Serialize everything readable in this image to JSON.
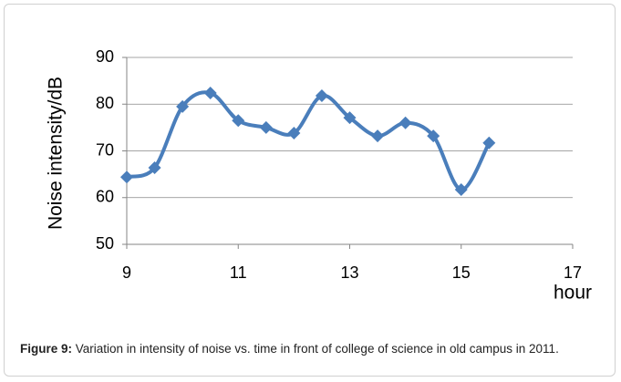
{
  "chart_data": {
    "type": "line",
    "x_label": "hour",
    "y_label": "Noise intensity/dB",
    "x": [
      9,
      9.5,
      10,
      10.5,
      11,
      11.5,
      12,
      12.5,
      13,
      13.5,
      14,
      14.5,
      15,
      15.5
    ],
    "values": [
      64.4,
      66.4,
      79.5,
      82.4,
      76.5,
      75,
      73.8,
      81.8,
      77.1,
      73.2,
      76,
      73.2,
      61.7,
      71.7
    ],
    "color": "#4a7ebb",
    "smooth": true,
    "grid": true,
    "xlim": [
      9,
      17
    ],
    "xticks": [
      9,
      11,
      13,
      15,
      17
    ],
    "ylim": [
      50,
      90
    ],
    "yticks": [
      50,
      60,
      70,
      80,
      90
    ]
  },
  "caption": {
    "label": "Figure 9:",
    "text": "Variation in intensity of noise vs. time in front of college of science in old campus in 2011."
  }
}
